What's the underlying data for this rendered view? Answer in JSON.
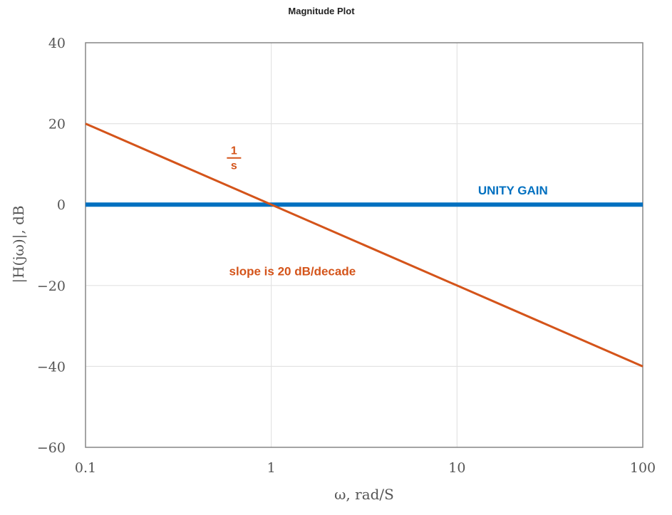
{
  "chart_data": {
    "type": "line",
    "title": "Magnitude Plot",
    "xlabel": "ω, rad/S",
    "ylabel": "|H(jω)|, dB",
    "x_scale": "log",
    "xlim": [
      0.1,
      100
    ],
    "ylim": [
      -60,
      40
    ],
    "x_ticks": [
      0.1,
      1,
      10,
      100
    ],
    "x_tick_labels": [
      "0.1",
      "1",
      "10",
      "100"
    ],
    "y_ticks": [
      40,
      20,
      0,
      -20,
      -40,
      -60
    ],
    "y_tick_labels": [
      "40",
      "20",
      "0",
      "−20",
      "−40",
      "−60"
    ],
    "grid": true,
    "series": [
      {
        "name": "UNITY GAIN",
        "color": "#0070c0",
        "x": [
          0.1,
          100
        ],
        "y": [
          0,
          0
        ]
      },
      {
        "name": "1/s",
        "color": "#d4541a",
        "x": [
          0.1,
          100
        ],
        "y": [
          20,
          -40
        ]
      }
    ],
    "annotations": [
      {
        "text": "UNITY GAIN",
        "x": 20,
        "y": 2.5,
        "color": "#0070c0"
      },
      {
        "text": "slope is 20 dB/decade",
        "x": 1.3,
        "y": -17.5,
        "color": "#d4541a"
      },
      {
        "numerator": "1",
        "denominator": "s",
        "x": 0.63,
        "y": 11,
        "color": "#d4541a"
      }
    ]
  }
}
